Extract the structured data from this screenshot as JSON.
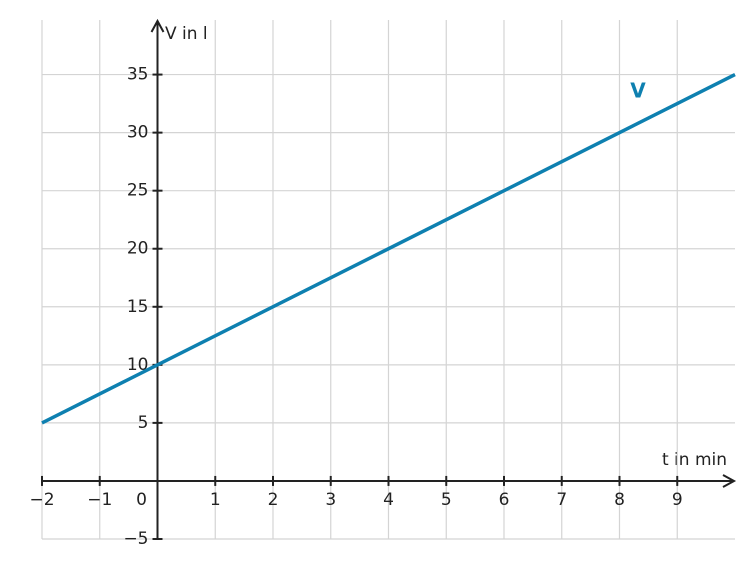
{
  "chart_data": {
    "type": "line",
    "xlabel": "t in min",
    "ylabel": "V in l",
    "x": [
      -2,
      10
    ],
    "series": [
      {
        "name": "V",
        "color": "#0e80b0",
        "values": [
          5,
          35
        ]
      }
    ],
    "xlim": [
      -2,
      10
    ],
    "ylim": [
      -5,
      39.7
    ],
    "xticks": [
      {
        "value": -2,
        "label": "−2"
      },
      {
        "value": -1,
        "label": "−1"
      },
      0,
      1,
      2,
      3,
      4,
      5,
      6,
      7,
      8,
      9
    ],
    "yticks": [
      {
        "value": -5,
        "label": "−5"
      },
      5,
      10,
      15,
      20,
      25,
      30,
      35
    ],
    "grid": true
  }
}
